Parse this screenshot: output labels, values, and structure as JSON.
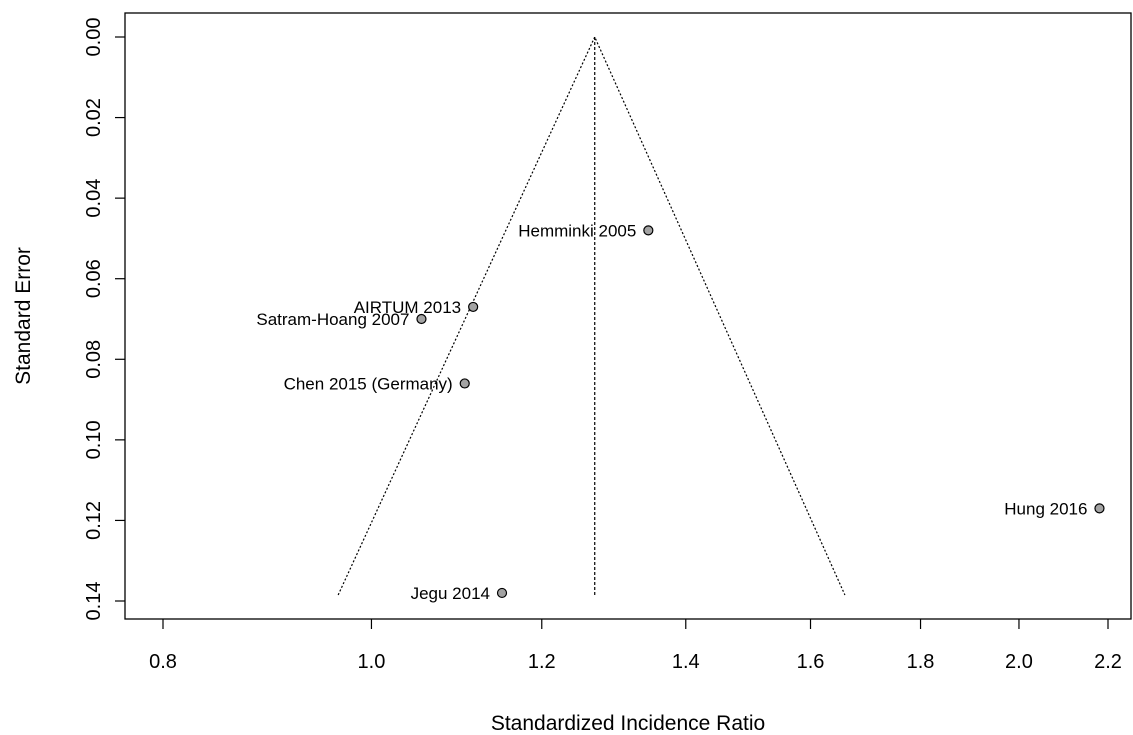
{
  "chart_data": {
    "type": "scatter",
    "title": "",
    "xlabel": "Standardized Incidence Ratio",
    "ylabel": "Standard Error",
    "xscale": "log",
    "x_ticks": [
      0.8,
      1.0,
      1.2,
      1.4,
      1.6,
      1.8,
      2.0,
      2.2
    ],
    "x_tick_labels": [
      "0.8",
      "1.0",
      "1.2",
      "1.4",
      "1.6",
      "1.8",
      "2.0",
      "2.2"
    ],
    "y_ticks": [
      0.0,
      0.02,
      0.04,
      0.06,
      0.08,
      0.1,
      0.12,
      0.14
    ],
    "y_tick_labels": [
      "0.00",
      "0.02",
      "0.04",
      "0.06",
      "0.08",
      "0.10",
      "0.12",
      "0.14"
    ],
    "y_reversed": true,
    "pooled_estimate": 1.27,
    "funnel": {
      "se_max": 0.1385,
      "x_low": 0.965,
      "x_high": 1.66
    },
    "grid": false,
    "points": [
      {
        "label": "Hemminki 2005",
        "x": 1.345,
        "se": 0.048
      },
      {
        "label": "AIRTUM 2013",
        "x": 1.115,
        "se": 0.067
      },
      {
        "label": "Satram-Hoang 2007",
        "x": 1.055,
        "se": 0.07
      },
      {
        "label": "Chen 2015 (Germany)",
        "x": 1.105,
        "se": 0.086
      },
      {
        "label": "Hung 2016",
        "x": 2.18,
        "se": 0.117
      },
      {
        "label": "Jegu 2014",
        "x": 1.15,
        "se": 0.138
      }
    ]
  }
}
